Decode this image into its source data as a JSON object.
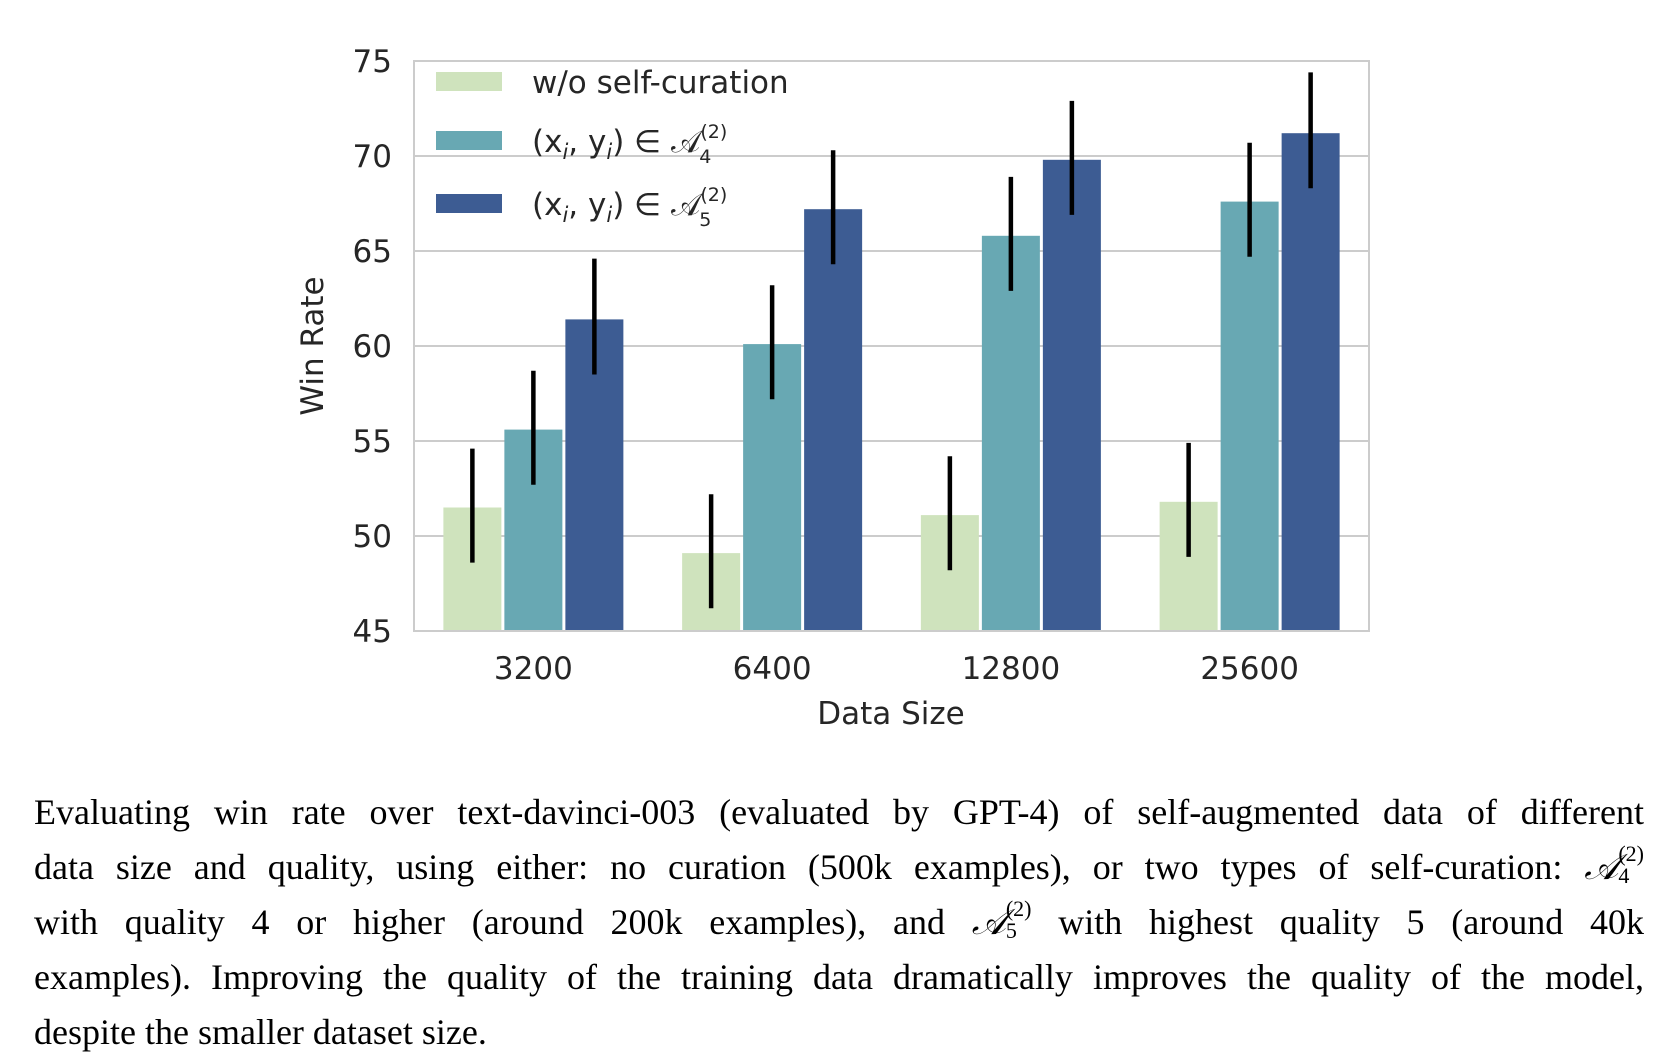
{
  "chart_data": {
    "type": "bar",
    "xlabel": "Data Size",
    "ylabel": "Win Rate",
    "categories": [
      "3200",
      "6400",
      "12800",
      "25600"
    ],
    "ylim": [
      45,
      75
    ],
    "yticks": [
      "45",
      "50",
      "55",
      "60",
      "65",
      "70",
      "75"
    ],
    "grid": true,
    "legend_position": "top-left",
    "series": [
      {
        "name": "w/o self-curation",
        "color": "#cfe3bd",
        "values": [
          51.5,
          49.1,
          51.1,
          51.8
        ],
        "err_low": [
          48.6,
          46.2,
          48.2,
          48.9
        ],
        "err_high": [
          54.6,
          52.2,
          54.2,
          54.9
        ]
      },
      {
        "name": "(x_i, y_i) ∈ A_4^(2)",
        "color": "#68a8b3",
        "values": [
          55.6,
          60.1,
          65.8,
          67.6
        ],
        "err_low": [
          52.7,
          57.2,
          62.9,
          64.7
        ],
        "err_high": [
          58.7,
          63.2,
          68.9,
          70.7
        ]
      },
      {
        "name": "(x_i, y_i) ∈ A_5^(2)",
        "color": "#3d5c93",
        "values": [
          61.4,
          67.2,
          69.8,
          71.2
        ],
        "err_low": [
          58.5,
          64.3,
          66.9,
          68.3
        ],
        "err_high": [
          64.6,
          70.3,
          72.9,
          74.4
        ]
      }
    ]
  },
  "legend": {
    "item1": "w/o self-curation",
    "item2_prefix": "(x",
    "item2_i": "i",
    "item2_mid": ", y",
    "item2_suffix": ") ∈ 𝒜",
    "item2_sup": "(2)",
    "item2_sub": "4",
    "item3_sub": "5"
  },
  "caption": {
    "line1": "Evaluating win rate over text-davinci-003 (evaluated by GPT-4) of self-augmented data of different",
    "line2_a": "data size and quality, using either: no curation (500k examples), or two types of self-curation:",
    "line3_a": "with quality 4 or higher (around 200k examples), and",
    "line3_b": "with highest quality 5 (around 40k",
    "line4": "examples). Improving the quality of the training data dramatically improves the quality of the model,",
    "line5": "despite the smaller dataset size.",
    "math_symbol": "𝒜",
    "math_sup": "(2)",
    "math_sub4": "4",
    "math_sub5": "5"
  }
}
